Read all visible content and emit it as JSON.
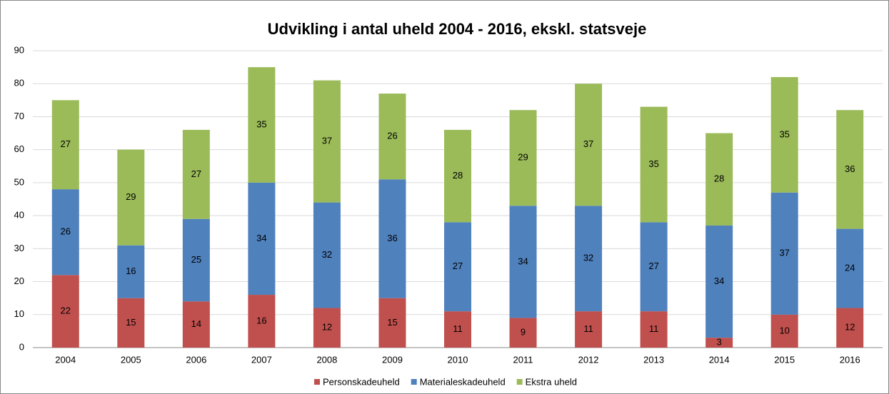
{
  "chart_data": {
    "type": "stacked_bar",
    "title": "Udvikling i antal uheld 2004 - 2016, ekskl. statsveje",
    "categories": [
      "2004",
      "2005",
      "2006",
      "2007",
      "2008",
      "2009",
      "2010",
      "2011",
      "2012",
      "2013",
      "2014",
      "2015",
      "2016"
    ],
    "series": [
      {
        "name": "Personskadeuheld",
        "color": "#c0504d",
        "values": [
          22,
          15,
          14,
          16,
          12,
          15,
          11,
          9,
          11,
          11,
          3,
          10,
          12
        ]
      },
      {
        "name": "Materialeskadeuheld",
        "color": "#4f81bd",
        "values": [
          26,
          16,
          25,
          34,
          32,
          36,
          27,
          34,
          32,
          27,
          34,
          37,
          24
        ]
      },
      {
        "name": "Ekstra uheld",
        "color": "#9bbb59",
        "values": [
          27,
          29,
          27,
          35,
          37,
          26,
          28,
          29,
          37,
          35,
          28,
          35,
          36
        ]
      }
    ],
    "ylim": [
      0,
      90
    ],
    "yticks": [
      0,
      10,
      20,
      30,
      40,
      50,
      60,
      70,
      80,
      90
    ],
    "grid": true,
    "legend": "bottom"
  }
}
